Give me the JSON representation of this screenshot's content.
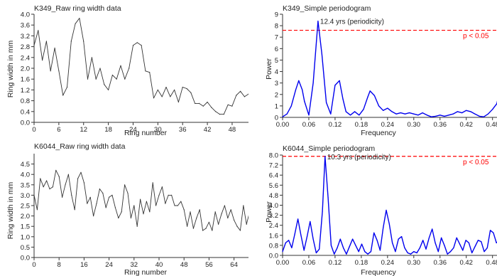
{
  "colors": {
    "raw_series": "#333333",
    "periodogram_series": "#0000ee",
    "significance_line": "#ff0000",
    "significance_label": "#ff0000",
    "axes": "#333333"
  },
  "chart_data": [
    {
      "type": "line",
      "title": "K349_Raw ring width data",
      "xlabel": "Ring number",
      "ylabel": "Ring width in mm",
      "xlim": [
        0,
        53
      ],
      "ylim": [
        0,
        4.0
      ],
      "xticks": [
        0,
        6,
        12,
        18,
        24,
        30,
        36,
        42,
        48
      ],
      "yticks": [
        0,
        0.4,
        0.8,
        1.2,
        1.6,
        2.0,
        2.4,
        2.8,
        3.2,
        3.6,
        4.0
      ],
      "ytick_labels": [
        "0.0",
        "0.4",
        "0.8",
        "1.2",
        "1.6",
        "2.0",
        "2.4",
        "2.8",
        "3.2",
        "3.6",
        "4.0"
      ],
      "series": [
        {
          "x": [
            0,
            1,
            2,
            3,
            4,
            5,
            6,
            7,
            8,
            9,
            10,
            11,
            12,
            13,
            14,
            15,
            16,
            17,
            18,
            19,
            20,
            21,
            22,
            23,
            24,
            25,
            26,
            27,
            28,
            29,
            30,
            31,
            32,
            33,
            34,
            35,
            36,
            37,
            38,
            39,
            40,
            41,
            42,
            43,
            44,
            45,
            46,
            47,
            48,
            49,
            50,
            51,
            52,
            53
          ],
          "values": [
            2.85,
            3.4,
            2.3,
            3.0,
            1.9,
            2.75,
            1.9,
            1.0,
            1.3,
            3.0,
            3.65,
            3.85,
            3.0,
            1.6,
            2.4,
            1.6,
            2.0,
            1.4,
            1.2,
            1.75,
            1.6,
            2.1,
            1.6,
            2.0,
            2.85,
            2.95,
            2.85,
            1.9,
            1.85,
            0.9,
            1.2,
            0.95,
            1.3,
            0.95,
            1.2,
            0.75,
            1.3,
            1.25,
            1.1,
            0.7,
            0.7,
            0.6,
            0.75,
            0.55,
            0.4,
            0.3,
            0.3,
            0.65,
            0.6,
            1.0,
            1.15,
            0.95,
            1.05,
            0.9
          ]
        }
      ]
    },
    {
      "type": "line",
      "title": "K349_Simple periodogram",
      "xlabel": "Frequency",
      "ylabel": "Power",
      "xlim": [
        0,
        0.5
      ],
      "ylim": [
        0,
        9
      ],
      "xticks": [
        0,
        0.06,
        0.12,
        0.18,
        0.24,
        0.3,
        0.36,
        0.42,
        0.48
      ],
      "xtick_labels": [
        "0.00",
        "0.06",
        "0.12",
        "0.18",
        "0.24",
        "0.30",
        "0.36",
        "0.42",
        "0.48"
      ],
      "yticks": [
        0,
        1,
        2,
        3,
        4,
        5,
        6,
        7,
        8,
        9
      ],
      "ytick_labels": [
        "0",
        "1",
        "2",
        "3",
        "4",
        "5",
        "6",
        "7",
        "8",
        "9"
      ],
      "significance": {
        "label": "p < 0.05",
        "value": 7.6
      },
      "annotation": {
        "text": "12.4 yrs (periodicity)",
        "x": 0.081,
        "y": 8.4
      },
      "series": [
        {
          "x": [
            0,
            0.01,
            0.02,
            0.03,
            0.037,
            0.045,
            0.05,
            0.06,
            0.07,
            0.081,
            0.09,
            0.1,
            0.11,
            0.12,
            0.13,
            0.138,
            0.145,
            0.155,
            0.165,
            0.175,
            0.185,
            0.195,
            0.2,
            0.21,
            0.22,
            0.23,
            0.24,
            0.25,
            0.26,
            0.27,
            0.28,
            0.29,
            0.3,
            0.31,
            0.32,
            0.33,
            0.34,
            0.35,
            0.36,
            0.37,
            0.38,
            0.39,
            0.4,
            0.41,
            0.42,
            0.43,
            0.44,
            0.45,
            0.46,
            0.47,
            0.48,
            0.49,
            0.5
          ],
          "values": [
            0.05,
            0.3,
            1.0,
            2.4,
            3.2,
            2.4,
            1.4,
            0.2,
            3.0,
            8.4,
            5.5,
            1.3,
            0.3,
            2.8,
            3.2,
            1.6,
            0.5,
            0.2,
            0.5,
            0.2,
            0.7,
            1.8,
            2.3,
            1.9,
            1.0,
            0.6,
            0.8,
            0.5,
            0.3,
            0.4,
            0.3,
            0.4,
            0.3,
            0.2,
            0.4,
            0.2,
            0.05,
            0.1,
            0.2,
            0.1,
            0.2,
            0.3,
            0.5,
            0.4,
            0.6,
            0.5,
            0.3,
            0.1,
            0.05,
            0.3,
            0.7,
            1.2,
            3.0
          ]
        }
      ]
    },
    {
      "type": "line",
      "title": "K6044_Raw ring width data",
      "xlabel": "Ring number",
      "ylabel": "Ring width in mm",
      "xlim": [
        0,
        70
      ],
      "ylim": [
        0,
        5.0
      ],
      "xticks": [
        0,
        8,
        16,
        24,
        32,
        40,
        48,
        56,
        64
      ],
      "yticks": [
        0,
        0.5,
        1.0,
        1.5,
        2.0,
        2.5,
        3.0,
        3.5,
        4.0,
        4.5
      ],
      "ytick_labels": [
        "0.0",
        "0.5",
        "1.0",
        "1.5",
        "2.0",
        "2.5",
        "3.0",
        "3.5",
        "4.0",
        "4.5"
      ],
      "series": [
        {
          "x": [
            0,
            1,
            2,
            3,
            4,
            5,
            6,
            7,
            8,
            9,
            10,
            11,
            12,
            13,
            14,
            15,
            16,
            17,
            18,
            19,
            20,
            21,
            22,
            23,
            24,
            25,
            26,
            27,
            28,
            29,
            30,
            31,
            32,
            33,
            34,
            35,
            36,
            37,
            38,
            39,
            40,
            41,
            42,
            43,
            44,
            45,
            46,
            47,
            48,
            49,
            50,
            51,
            52,
            53,
            54,
            55,
            56,
            57,
            58,
            59,
            60,
            61,
            62,
            63,
            64,
            65,
            66,
            67,
            68,
            69,
            70
          ],
          "values": [
            3.0,
            2.3,
            3.8,
            3.4,
            3.7,
            3.3,
            3.4,
            4.2,
            3.9,
            2.9,
            3.5,
            4.0,
            3.0,
            2.3,
            3.8,
            4.1,
            3.6,
            2.6,
            2.9,
            2.0,
            2.6,
            3.3,
            3.1,
            2.4,
            2.9,
            3.0,
            2.4,
            1.9,
            2.2,
            3.5,
            3.1,
            1.9,
            2.5,
            1.5,
            2.8,
            2.1,
            2.7,
            2.2,
            3.6,
            2.5,
            3.0,
            3.4,
            2.6,
            3.0,
            3.0,
            2.5,
            2.5,
            2.7,
            2.3,
            1.5,
            2.2,
            1.4,
            1.9,
            2.3,
            1.3,
            1.4,
            1.7,
            1.3,
            2.2,
            1.6,
            2.1,
            2.5,
            1.9,
            2.3,
            1.8,
            1.5,
            1.3,
            2.5,
            1.6,
            2.2,
            1.4
          ]
        }
      ]
    },
    {
      "type": "line",
      "title": "K6044_Simple periodogram",
      "xlabel": "Frequency",
      "ylabel": "Power",
      "xlim": [
        0,
        0.5
      ],
      "ylim": [
        0,
        8.0
      ],
      "xticks": [
        0,
        0.06,
        0.12,
        0.18,
        0.24,
        0.3,
        0.36,
        0.42,
        0.48
      ],
      "xtick_labels": [
        "0.00",
        "0.06",
        "0.12",
        "0.18",
        "0.24",
        "0.30",
        "0.36",
        "0.42",
        "0.48"
      ],
      "yticks": [
        0,
        0.8,
        1.6,
        2.4,
        3.2,
        4.0,
        4.8,
        5.6,
        6.4,
        7.2,
        8.0
      ],
      "ytick_labels": [
        "0.0",
        "0.8",
        "1.6",
        "2.4",
        "3.2",
        "4.0",
        "4.8",
        "5.6",
        "6.4",
        "7.2",
        "8.0"
      ],
      "significance": {
        "label": "p < 0.05",
        "value": 7.9
      },
      "annotation": {
        "text": "10.3 yrs (periodicity)",
        "x": 0.097,
        "y": 7.9
      },
      "series": [
        {
          "x": [
            0,
            0.007,
            0.014,
            0.021,
            0.028,
            0.035,
            0.042,
            0.049,
            0.056,
            0.063,
            0.07,
            0.077,
            0.084,
            0.091,
            0.097,
            0.104,
            0.111,
            0.118,
            0.125,
            0.132,
            0.139,
            0.146,
            0.153,
            0.16,
            0.167,
            0.174,
            0.181,
            0.188,
            0.195,
            0.202,
            0.209,
            0.216,
            0.223,
            0.23,
            0.237,
            0.244,
            0.251,
            0.258,
            0.265,
            0.272,
            0.279,
            0.286,
            0.293,
            0.3,
            0.307,
            0.314,
            0.321,
            0.328,
            0.335,
            0.342,
            0.349,
            0.356,
            0.363,
            0.37,
            0.377,
            0.384,
            0.391,
            0.398,
            0.405,
            0.412,
            0.419,
            0.426,
            0.433,
            0.44,
            0.447,
            0.454,
            0.461,
            0.468,
            0.475,
            0.482,
            0.489,
            0.496,
            0.5
          ],
          "values": [
            0.3,
            1.0,
            1.2,
            0.6,
            1.7,
            2.9,
            1.6,
            0.4,
            1.5,
            2.7,
            1.3,
            0.2,
            0.5,
            3.5,
            7.9,
            4.6,
            0.8,
            0.1,
            0.6,
            1.3,
            0.6,
            0.1,
            0.7,
            1.3,
            0.8,
            0.3,
            0.9,
            0.3,
            0.1,
            0.3,
            1.8,
            1.2,
            0.4,
            2.2,
            3.6,
            2.5,
            1.0,
            0.3,
            1.3,
            1.5,
            0.6,
            0.2,
            0.1,
            0.3,
            0.2,
            0.6,
            1.2,
            0.5,
            1.4,
            2.1,
            1.0,
            0.3,
            1.4,
            0.8,
            0.1,
            0.3,
            0.6,
            1.4,
            0.9,
            0.4,
            1.2,
            1.0,
            0.2,
            0.7,
            1.2,
            1.1,
            0.3,
            0.6,
            2.0,
            1.8,
            1.0,
            1.2,
            2.3
          ]
        }
      ]
    }
  ]
}
